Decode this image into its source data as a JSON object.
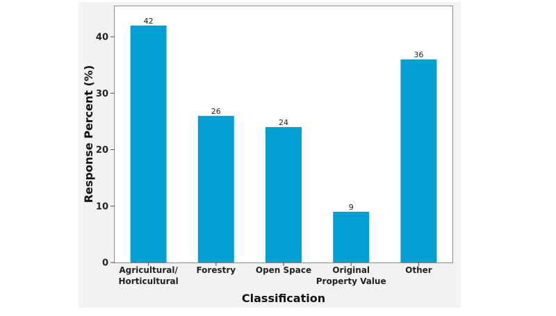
{
  "chart_data": {
    "type": "bar",
    "title": "",
    "xlabel": "Classification",
    "ylabel": "Response Percent (%)",
    "categories": [
      [
        "Agricultural/",
        "Horticultural"
      ],
      [
        "Forestry"
      ],
      [
        "Open Space"
      ],
      [
        "Original",
        "Property Value"
      ],
      [
        "Other"
      ]
    ],
    "values": [
      42,
      26,
      24,
      9,
      36
    ],
    "value_labels": [
      "42",
      "26",
      "24",
      "9",
      "36"
    ],
    "ylim": [
      0,
      45
    ],
    "yticks": [
      0,
      10,
      20,
      30,
      40
    ],
    "ytick_labels": [
      "0",
      "10",
      "20",
      "30",
      "40"
    ],
    "grid": false,
    "bar_color": "#049fd2",
    "panel_color": "#f2f2f2"
  }
}
